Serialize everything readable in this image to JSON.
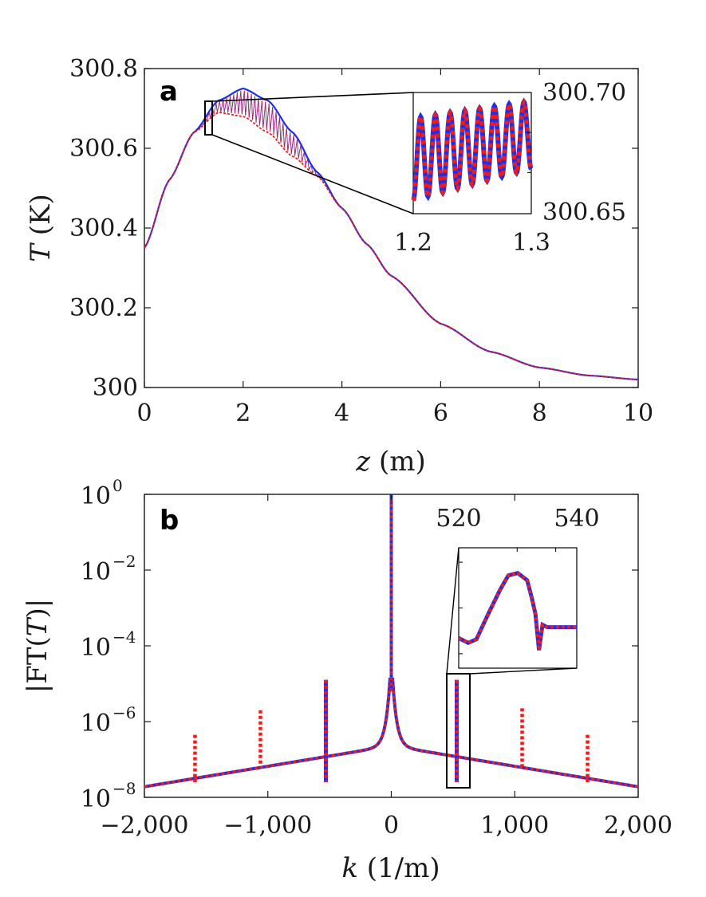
{
  "colors": {
    "blue": "#1f2eea",
    "red": "#ee1b1b",
    "axis": "#1a1a1a"
  },
  "chart_data": [
    {
      "panel": "a",
      "type": "line",
      "xlabel_var": "z",
      "xlabel_unit": " (m)",
      "ylabel_var": "T",
      "ylabel_unit": " (K)",
      "xlim": [
        0,
        10
      ],
      "ylim": [
        300,
        300.8
      ],
      "xticks": [
        0,
        2,
        4,
        6,
        8,
        10
      ],
      "xtick_labels": [
        "0",
        "2",
        "4",
        "6",
        "8",
        "10"
      ],
      "yticks": [
        300,
        300.2,
        300.4,
        300.6,
        300.8
      ],
      "ytick_labels": [
        "300",
        "300.2",
        "300.4",
        "300.6",
        "300.8"
      ],
      "series": [
        {
          "name": "blue (upper envelope)",
          "color": "blue",
          "x": [
            0,
            0.5,
            1.0,
            1.5,
            2.0,
            2.5,
            3.0,
            3.5,
            4.0,
            4.5,
            5.0,
            6.0,
            7.0,
            8.0,
            9.0,
            10.0
          ],
          "y": [
            300.35,
            300.52,
            300.64,
            300.72,
            300.75,
            300.72,
            300.64,
            300.54,
            300.45,
            300.36,
            300.28,
            300.16,
            300.09,
            300.05,
            300.03,
            300.02
          ]
        },
        {
          "name": "red (lower envelope)",
          "color": "red",
          "x": [
            0,
            0.5,
            1.0,
            1.5,
            2.0,
            2.5,
            3.0,
            3.5,
            4.0,
            4.5,
            5.0,
            6.0,
            7.0,
            8.0,
            9.0,
            10.0
          ],
          "y": [
            300.35,
            300.52,
            300.64,
            300.69,
            300.68,
            300.64,
            300.58,
            300.53,
            300.45,
            300.36,
            300.28,
            300.16,
            300.09,
            300.05,
            300.03,
            300.02
          ]
        }
      ],
      "inset": {
        "xlim": [
          1.2,
          1.3
        ],
        "ylim": [
          300.65,
          300.7
        ],
        "xtick_labels": [
          "1.2",
          "1.3"
        ],
        "ytick_labels": [
          "300.65",
          "300.70"
        ],
        "oscillations": 8,
        "note": "blue solid and red dotted overlap, oscillating"
      }
    },
    {
      "panel": "b",
      "type": "line",
      "yscale": "log",
      "xlabel_var": "k",
      "xlabel_unit": " (1/m)",
      "ylabel_text": "|FT(",
      "ylabel_var": "T",
      "ylabel_tail": ")|",
      "xlim": [
        -2000,
        2000
      ],
      "ylim_exp": [
        -8,
        0
      ],
      "xticks": [
        -2000,
        -1000,
        0,
        1000,
        2000
      ],
      "xtick_labels": [
        "−2,000",
        "−1,000",
        "0",
        "1,000",
        "2,000"
      ],
      "yticks_exp": [
        0,
        -2,
        -4,
        -6,
        -8
      ],
      "ytick_exp_labels": [
        "0",
        "−2",
        "−4",
        "−6",
        "−8"
      ],
      "ytick_base": "10",
      "spectrum": {
        "k": [
          -2000,
          -1500,
          -1000,
          -700,
          -400,
          -200,
          -100,
          -40,
          -10,
          0,
          10,
          40,
          100,
          200,
          400,
          700,
          1000,
          1500,
          2000
        ],
        "log10_amp": [
          -7.7,
          -7.45,
          -7.2,
          -7.0,
          -6.75,
          -6.5,
          -6.2,
          -5.8,
          -5.3,
          0,
          -5.3,
          -5.8,
          -6.2,
          -6.5,
          -6.75,
          -7.0,
          -7.2,
          -7.45,
          -7.7
        ]
      },
      "spikes": [
        {
          "k": -1590,
          "top": -6.35,
          "bottom": -7.6,
          "color": "red"
        },
        {
          "k": -1060,
          "top": -5.7,
          "bottom": -7.2,
          "color": "red"
        },
        {
          "k": -530,
          "top": -4.9,
          "bottom": -7.6,
          "color": "blue"
        },
        {
          "k": 530,
          "top": -4.9,
          "bottom": -7.6,
          "color": "blue"
        },
        {
          "k": 1060,
          "top": -5.65,
          "bottom": -7.2,
          "color": "red"
        },
        {
          "k": 1590,
          "top": -6.35,
          "bottom": -7.6,
          "color": "red"
        }
      ],
      "inset": {
        "xtick_labels": [
          "520",
          "540"
        ],
        "note": "zoom of peak near k = 530"
      }
    }
  ],
  "panel_labels": {
    "a": "a",
    "b": "b"
  }
}
